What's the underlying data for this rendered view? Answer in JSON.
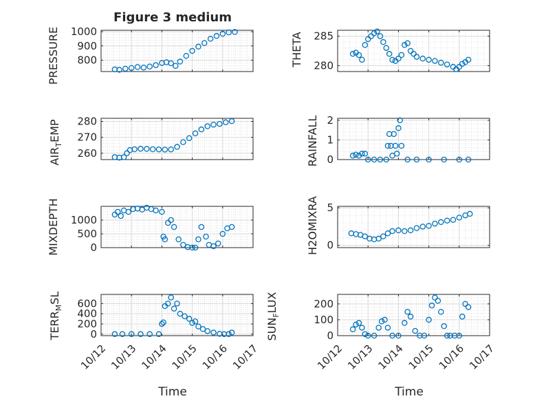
{
  "figure": {
    "title": "Figure 3 medium",
    "xlabel": "Time",
    "marker_color": "#0072BD",
    "grid_color": "#d9d9d9",
    "axis_color": "#262626"
  },
  "chart_data": [
    {
      "type": "scatter",
      "ylabel": "PRESSURE",
      "ylim": [
        720,
        1010
      ],
      "yticks": [
        800,
        900,
        1000
      ],
      "ytick_labels": [
        "800",
        "900",
        "1000"
      ],
      "xlim": [
        0,
        5
      ],
      "xticks": [
        0,
        1,
        2,
        3,
        4,
        5
      ],
      "xtick_labels": [
        "10/12",
        "10/13",
        "10/14",
        "10/15",
        "10/16",
        "10/17"
      ],
      "x": [
        0.45,
        0.6,
        0.8,
        1.0,
        1.2,
        1.4,
        1.6,
        1.8,
        2.0,
        2.15,
        2.3,
        2.45,
        2.6,
        2.8,
        3.0,
        3.2,
        3.4,
        3.6,
        3.8,
        4.0,
        4.2,
        4.4
      ],
      "values": [
        735,
        732,
        740,
        745,
        752,
        748,
        755,
        765,
        780,
        785,
        778,
        760,
        790,
        830,
        865,
        895,
        920,
        950,
        970,
        985,
        995,
        998
      ]
    },
    {
      "type": "scatter",
      "ylabel": "THETA",
      "ylim": [
        279,
        286
      ],
      "yticks": [
        280,
        285
      ],
      "ytick_labels": [
        "280",
        "285"
      ],
      "xlim": [
        0,
        5
      ],
      "xticks": [
        0,
        1,
        2,
        3,
        4,
        5
      ],
      "xtick_labels": [
        "10/12",
        "10/13",
        "10/14",
        "10/15",
        "10/16",
        "10/17"
      ],
      "x": [
        0.5,
        0.6,
        0.7,
        0.8,
        0.9,
        1.0,
        1.1,
        1.2,
        1.3,
        1.4,
        1.5,
        1.6,
        1.7,
        1.8,
        1.9,
        2.0,
        2.1,
        2.2,
        2.3,
        2.4,
        2.5,
        2.6,
        2.8,
        3.0,
        3.2,
        3.4,
        3.6,
        3.8,
        3.9,
        4.0,
        4.1,
        4.2,
        4.3
      ],
      "values": [
        282,
        282.2,
        281.8,
        281.0,
        283.5,
        284.5,
        285.0,
        285.5,
        285.8,
        285.0,
        284.0,
        283.0,
        282.0,
        281.0,
        280.8,
        281.2,
        281.8,
        283.5,
        283.8,
        282.5,
        282.0,
        281.5,
        281.2,
        281.0,
        280.8,
        280.5,
        280.2,
        279.8,
        279.4,
        279.8,
        280.3,
        280.6,
        281.0
      ]
    },
    {
      "type": "scatter",
      "ylabel": "AIR_TEMP",
      "ylim": [
        256,
        282
      ],
      "yticks": [
        260,
        270,
        280
      ],
      "ytick_labels": [
        "260",
        "270",
        "280"
      ],
      "xlim": [
        0,
        5
      ],
      "xticks": [
        0,
        1,
        2,
        3,
        4,
        5
      ],
      "xtick_labels": [
        "10/12",
        "10/13",
        "10/14",
        "10/15",
        "10/16",
        "10/17"
      ],
      "x": [
        0.45,
        0.6,
        0.75,
        0.85,
        0.95,
        1.1,
        1.3,
        1.5,
        1.7,
        1.9,
        2.1,
        2.3,
        2.5,
        2.7,
        2.9,
        3.1,
        3.3,
        3.5,
        3.7,
        3.9,
        4.1,
        4.3
      ],
      "values": [
        257.5,
        257.2,
        257.5,
        260.0,
        262.0,
        262.5,
        262.8,
        262.7,
        262.5,
        262.4,
        262.3,
        262.4,
        264.0,
        267.0,
        269.5,
        272.5,
        275.0,
        277.0,
        278.0,
        278.5,
        279.5,
        280.2
      ]
    },
    {
      "type": "scatter",
      "ylabel": "RAINFALL",
      "ylim": [
        0,
        2.1
      ],
      "yticks": [
        0,
        1,
        2
      ],
      "ytick_labels": [
        "0",
        "1",
        "2"
      ],
      "xlim": [
        0,
        5
      ],
      "xticks": [
        0,
        1,
        2,
        3,
        4,
        5
      ],
      "xtick_labels": [
        "10/12",
        "10/13",
        "10/14",
        "10/15",
        "10/16",
        "10/17"
      ],
      "x": [
        0.5,
        0.6,
        0.7,
        0.8,
        0.9,
        1.0,
        1.2,
        1.4,
        1.6,
        1.65,
        1.7,
        1.75,
        1.8,
        1.85,
        1.9,
        1.95,
        2.0,
        2.05,
        2.1,
        2.3,
        2.6,
        3.0,
        3.5,
        4.0,
        4.3
      ],
      "values": [
        0.2,
        0.25,
        0.2,
        0.3,
        0.3,
        0,
        0,
        0,
        0,
        0.7,
        1.3,
        0.7,
        0.2,
        1.3,
        0.7,
        0.3,
        1.6,
        2.0,
        0.7,
        0,
        0,
        0,
        0,
        0,
        0
      ]
    },
    {
      "type": "scatter",
      "ylabel": "MIXDEPTH",
      "ylim": [
        0,
        1500
      ],
      "yticks": [
        0,
        500,
        1000
      ],
      "ytick_labels": [
        "0",
        "500",
        "1000"
      ],
      "xlim": [
        0,
        5
      ],
      "xticks": [
        0,
        1,
        2,
        3,
        4,
        5
      ],
      "xtick_labels": [
        "10/12",
        "10/13",
        "10/14",
        "10/15",
        "10/16",
        "10/17"
      ],
      "x": [
        0.45,
        0.55,
        0.65,
        0.75,
        0.9,
        1.05,
        1.2,
        1.35,
        1.5,
        1.65,
        1.8,
        2.0,
        2.05,
        2.1,
        2.2,
        2.3,
        2.4,
        2.55,
        2.7,
        2.85,
        3.0,
        3.1,
        3.2,
        3.3,
        3.45,
        3.55,
        3.7,
        3.85,
        4.0,
        4.15,
        4.3
      ],
      "values": [
        1200,
        1300,
        1150,
        1350,
        1300,
        1400,
        1420,
        1380,
        1450,
        1400,
        1350,
        1300,
        400,
        300,
        900,
        1000,
        750,
        300,
        100,
        20,
        0,
        0,
        300,
        750,
        400,
        100,
        50,
        150,
        500,
        700,
        750
      ]
    },
    {
      "type": "scatter",
      "ylabel": "H2OMIXRA",
      "ylim": [
        -0.3,
        5.2
      ],
      "yticks": [
        0,
        5
      ],
      "ytick_labels": [
        "0",
        "5"
      ],
      "xlim": [
        0,
        5
      ],
      "xticks": [
        0,
        1,
        2,
        3,
        4,
        5
      ],
      "xtick_labels": [
        "10/12",
        "10/13",
        "10/14",
        "10/15",
        "10/16",
        "10/17"
      ],
      "x": [
        0.45,
        0.6,
        0.75,
        0.9,
        1.05,
        1.2,
        1.35,
        1.5,
        1.65,
        1.8,
        2.0,
        2.2,
        2.4,
        2.6,
        2.8,
        3.0,
        3.2,
        3.4,
        3.6,
        3.8,
        4.0,
        4.2,
        4.35
      ],
      "values": [
        1.6,
        1.5,
        1.4,
        1.2,
        0.9,
        0.8,
        0.9,
        1.2,
        1.6,
        1.9,
        2.0,
        1.9,
        2.0,
        2.3,
        2.5,
        2.6,
        2.9,
        3.1,
        3.3,
        3.4,
        3.7,
        4.0,
        4.2
      ]
    },
    {
      "type": "scatter",
      "ylabel": "TERR_MSL",
      "ylim": [
        -30,
        780
      ],
      "yticks": [
        0,
        200,
        400,
        600
      ],
      "ytick_labels": [
        "0",
        "200",
        "400",
        "600"
      ],
      "xlim": [
        0,
        5
      ],
      "xticks": [
        0,
        1,
        2,
        3,
        4,
        5
      ],
      "xtick_labels": [
        "10/12",
        "10/13",
        "10/14",
        "10/15",
        "10/16",
        "10/17"
      ],
      "x": [
        0.45,
        0.7,
        1.0,
        1.3,
        1.6,
        1.9,
        2.0,
        2.05,
        2.1,
        2.2,
        2.3,
        2.4,
        2.5,
        2.6,
        2.75,
        2.9,
        3.0,
        3.1,
        3.2,
        3.35,
        3.5,
        3.7,
        3.9,
        4.05,
        4.2,
        4.3
      ],
      "values": [
        0,
        0,
        0,
        0,
        0,
        0,
        200,
        230,
        550,
        600,
        720,
        500,
        600,
        400,
        350,
        300,
        220,
        250,
        150,
        100,
        60,
        30,
        5,
        0,
        0,
        30
      ]
    },
    {
      "type": "scatter",
      "ylabel": "SUN_FLUX",
      "ylim": [
        0,
        260
      ],
      "yticks": [
        0,
        100,
        200
      ],
      "ytick_labels": [
        "0",
        "100",
        "200"
      ],
      "xlim": [
        0,
        5
      ],
      "xticks": [
        0,
        1,
        2,
        3,
        4,
        5
      ],
      "xtick_labels": [
        "10/12",
        "10/13",
        "10/14",
        "10/15",
        "10/16",
        "10/17"
      ],
      "x": [
        0.5,
        0.6,
        0.7,
        0.8,
        0.9,
        1.0,
        1.2,
        1.35,
        1.45,
        1.55,
        1.65,
        1.8,
        2.0,
        2.2,
        2.3,
        2.4,
        2.55,
        2.7,
        2.85,
        3.0,
        3.1,
        3.2,
        3.3,
        3.4,
        3.5,
        3.6,
        3.7,
        3.85,
        4.0,
        4.1,
        4.2,
        4.3
      ],
      "values": [
        40,
        70,
        80,
        50,
        10,
        0,
        0,
        50,
        90,
        100,
        50,
        0,
        0,
        80,
        150,
        120,
        30,
        0,
        0,
        100,
        190,
        240,
        220,
        150,
        60,
        0,
        0,
        0,
        0,
        120,
        200,
        180
      ]
    }
  ]
}
